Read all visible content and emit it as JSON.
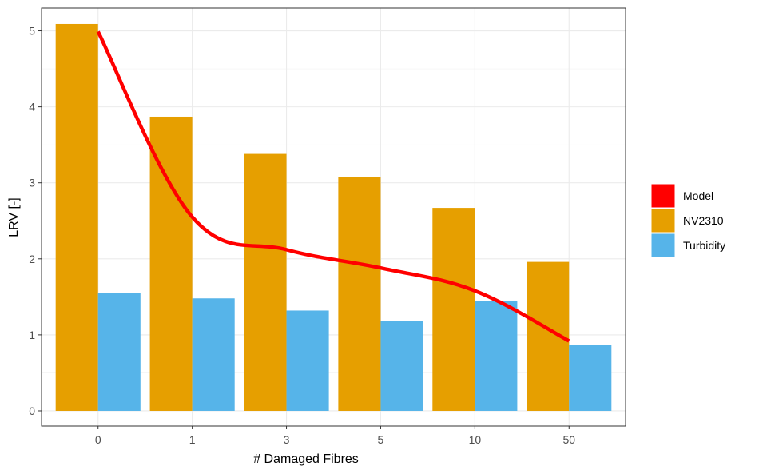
{
  "chart_data": {
    "type": "bar",
    "xlabel": "# Damaged Fibres",
    "ylabel": "LRV [-]",
    "categories": [
      "0",
      "1",
      "3",
      "5",
      "10",
      "50"
    ],
    "ylim": [
      -0.2,
      5.3
    ],
    "yticks": [
      0,
      1,
      2,
      3,
      4,
      5
    ],
    "grid": true,
    "legend_position": "right",
    "series": [
      {
        "name": "NV2310",
        "kind": "bar",
        "color": "#E69F00",
        "values": [
          5.09,
          3.87,
          3.38,
          3.08,
          2.67,
          1.96
        ]
      },
      {
        "name": "Turbidity",
        "kind": "bar",
        "color": "#56B4E9",
        "values": [
          1.55,
          1.48,
          1.32,
          1.18,
          1.45,
          0.87
        ]
      },
      {
        "name": "Model",
        "kind": "line",
        "color": "#FF0000",
        "values": [
          4.99,
          2.55,
          2.12,
          1.88,
          1.58,
          0.92
        ]
      }
    ],
    "legend": [
      "Model",
      "NV2310",
      "Turbidity"
    ]
  }
}
